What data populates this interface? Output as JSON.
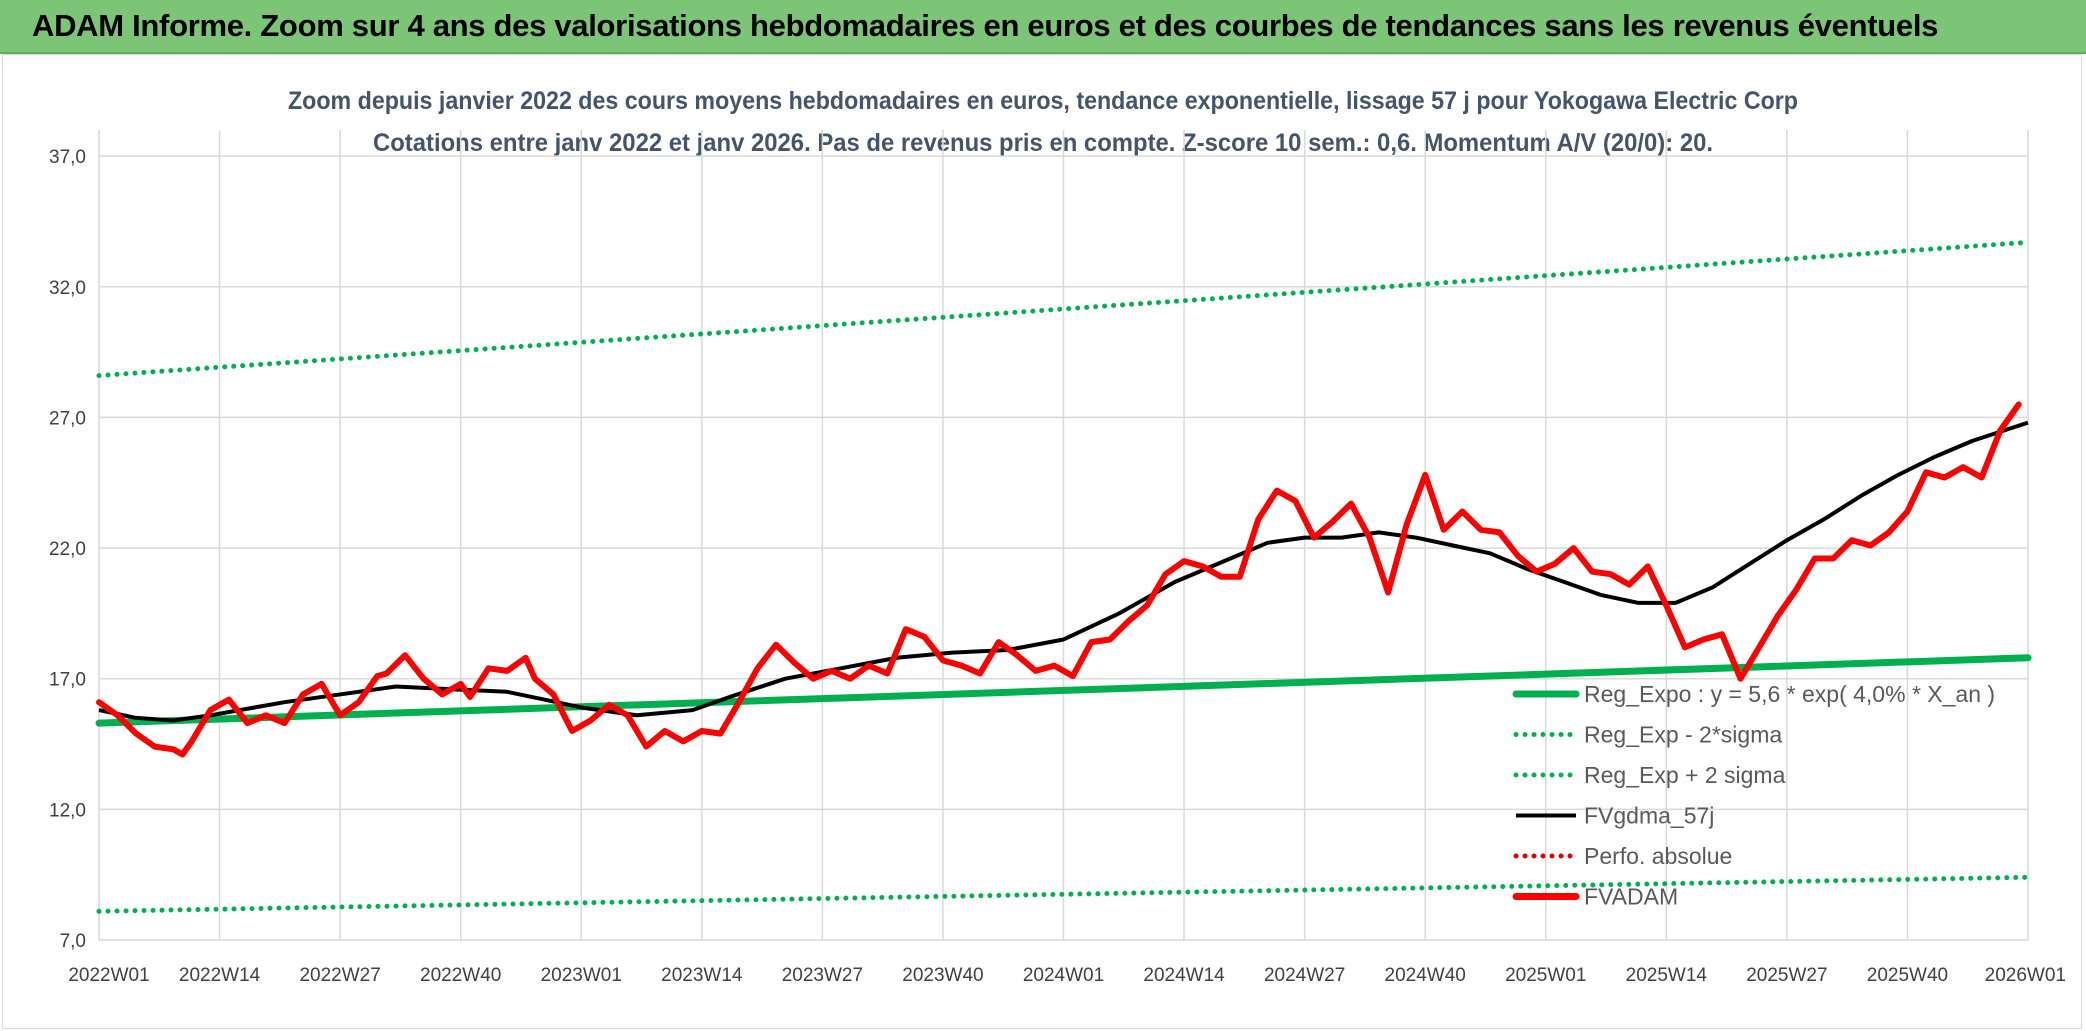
{
  "banner": {
    "title": "ADAM Informe. Zoom sur 4 ans des valorisations hebdomadaires en euros et des courbes de tendances sans les revenus éventuels"
  },
  "chart_data": {
    "type": "line",
    "title": "Zoom depuis janvier 2022 des cours moyens hebdomadaires en euros, tendance exponentielle, lissage 57 j pour Yokogawa Electric Corp",
    "subtitle": "Cotations entre janv 2022 et janv 2026. Pas de revenus pris en compte. Z-score 10 sem.: 0,6. Momentum A/V (20/0): 20.",
    "xlabel": "",
    "ylabel": "",
    "ylim": [
      7,
      38
    ],
    "xlim_weeks": [
      0,
      208
    ],
    "y_ticks": [
      "37,0",
      "32,0",
      "27,0",
      "22,0",
      "17,0",
      "12,0",
      "7,0"
    ],
    "y_tick_values": [
      37,
      32,
      27,
      22,
      17,
      12,
      7
    ],
    "x_ticks": [
      "2022W01",
      "2022W14",
      "2022W27",
      "2022W40",
      "2023W01",
      "2023W14",
      "2023W27",
      "2023W40",
      "2024W01",
      "2024W14",
      "2024W27",
      "2024W40",
      "2025W01",
      "2025W14",
      "2025W27",
      "2025W40",
      "2026W01"
    ],
    "x_tick_weeks": [
      0,
      13,
      26,
      39,
      52,
      65,
      78,
      91,
      104,
      117,
      130,
      143,
      156,
      169,
      182,
      195,
      208
    ],
    "grid": true,
    "legend_position": "bottom-right",
    "series": [
      {
        "name": "Reg_Expo : y = 5,6 * exp( 4,0% *  X_an )",
        "style": "solid-thick",
        "color": "#00b050",
        "x": [
          0,
          208
        ],
        "values": [
          15.3,
          17.8
        ]
      },
      {
        "name": "Reg_Exp - 2*sigma",
        "style": "dotted",
        "color": "#00b050",
        "x": [
          0,
          208
        ],
        "values": [
          8.1,
          9.4
        ]
      },
      {
        "name": "Reg_Exp + 2 sigma",
        "style": "dotted",
        "color": "#00b050",
        "x": [
          0,
          208
        ],
        "values": [
          28.6,
          33.7
        ]
      },
      {
        "name": "FVgdma_57j",
        "style": "solid",
        "color": "#000000",
        "x": [
          0,
          4,
          8,
          12,
          20,
          28,
          32,
          38,
          44,
          48,
          52,
          58,
          64,
          68,
          74,
          80,
          86,
          92,
          98,
          104,
          110,
          116,
          122,
          126,
          130,
          134,
          138,
          142,
          146,
          150,
          154,
          158,
          162,
          166,
          170,
          174,
          178,
          182,
          186,
          190,
          194,
          198,
          202,
          208
        ],
        "values": [
          15.8,
          15.5,
          15.4,
          15.6,
          16.1,
          16.5,
          16.7,
          16.6,
          16.5,
          16.2,
          15.9,
          15.6,
          15.8,
          16.3,
          17.0,
          17.4,
          17.8,
          18.0,
          18.1,
          18.5,
          19.5,
          20.7,
          21.6,
          22.2,
          22.4,
          22.4,
          22.6,
          22.4,
          22.1,
          21.8,
          21.2,
          20.7,
          20.2,
          19.9,
          19.9,
          20.5,
          21.4,
          22.3,
          23.1,
          24.0,
          24.8,
          25.5,
          26.1,
          26.8
        ]
      },
      {
        "name": "Perfo. absolue",
        "style": "dotted",
        "color": "#e00000",
        "x": [],
        "values": []
      },
      {
        "name": "FVADAM",
        "style": "solid-thick",
        "color": "#ff0000",
        "x": [
          0,
          2,
          4,
          6,
          8,
          9,
          10,
          12,
          14,
          16,
          18,
          20,
          22,
          24,
          26,
          28,
          30,
          31,
          33,
          35,
          37,
          39,
          40,
          42,
          44,
          46,
          47,
          49,
          51,
          53,
          55,
          57,
          59,
          61,
          63,
          65,
          67,
          69,
          71,
          73,
          75,
          77,
          79,
          81,
          83,
          85,
          87,
          89,
          91,
          93,
          95,
          97,
          99,
          101,
          103,
          105,
          107,
          109,
          111,
          113,
          115,
          117,
          119,
          121,
          123,
          125,
          127,
          129,
          131,
          133,
          135,
          137,
          139,
          141,
          143,
          145,
          147,
          149,
          151,
          153,
          155,
          157,
          159,
          161,
          163,
          165,
          167,
          169,
          171,
          173,
          175,
          177,
          179,
          181,
          183,
          185,
          187,
          189,
          191,
          193,
          195,
          197,
          199,
          201,
          203,
          205,
          207
        ],
        "values": [
          16.1,
          15.6,
          14.9,
          14.4,
          14.3,
          14.1,
          14.6,
          15.8,
          16.2,
          15.3,
          15.6,
          15.3,
          16.4,
          16.8,
          15.6,
          16.1,
          17.1,
          17.2,
          17.9,
          17.0,
          16.4,
          16.8,
          16.3,
          17.4,
          17.3,
          17.8,
          17.0,
          16.4,
          15.0,
          15.4,
          16.0,
          15.6,
          14.4,
          15.0,
          14.6,
          15.0,
          14.9,
          16.1,
          17.4,
          18.3,
          17.6,
          17.0,
          17.3,
          17.0,
          17.5,
          17.2,
          18.9,
          18.6,
          17.7,
          17.5,
          17.2,
          18.4,
          17.9,
          17.3,
          17.5,
          17.1,
          18.4,
          18.5,
          19.2,
          19.8,
          21.0,
          21.5,
          21.3,
          20.9,
          20.9,
          23.1,
          24.2,
          23.8,
          22.4,
          23.0,
          23.7,
          22.4,
          20.3,
          22.9,
          24.8,
          22.7,
          23.4,
          22.7,
          22.6,
          21.7,
          21.1,
          21.4,
          22.0,
          21.1,
          21.0,
          20.6,
          21.3,
          19.8,
          18.2,
          18.5,
          18.7,
          17.0,
          18.2,
          19.4,
          20.4,
          21.6,
          21.6,
          22.3,
          22.1,
          22.6,
          23.4,
          24.9,
          24.7,
          25.1,
          24.7,
          26.5,
          27.5
        ]
      }
    ],
    "colors": {
      "grid": "#d9d9d9",
      "tick_text": "#404040",
      "title_text": "#44546a",
      "legend_text": "#595959"
    }
  }
}
